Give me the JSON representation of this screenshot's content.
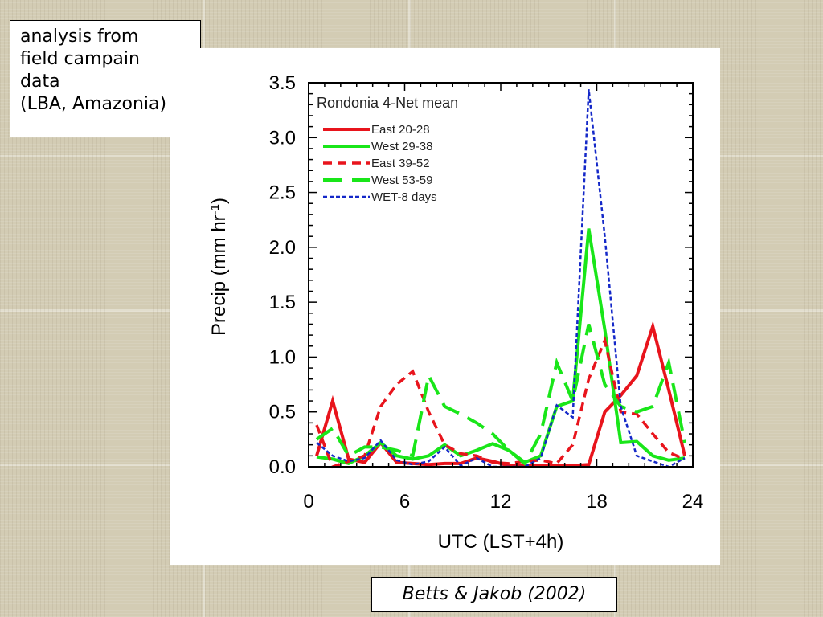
{
  "note": {
    "lines": [
      "analysis from",
      "field campain",
      "data",
      "(LBA, Amazonia)"
    ]
  },
  "citation": "Betts & Jakob (2002)",
  "chart_data": {
    "type": "line",
    "title": "Rondonia 4-Net mean",
    "xlabel": "UTC (LST+4h)",
    "ylabel": "Precip  (mm hr-1)",
    "ylabel_main": "Precip  (mm hr",
    "ylabel_sup": "-1",
    "ylabel_close": ")",
    "xlim": [
      0,
      24
    ],
    "ylim": [
      0,
      3.5
    ],
    "xticks": [
      0,
      6,
      12,
      18,
      24
    ],
    "yticks": [
      "0.0",
      "0.5",
      "1.0",
      "1.5",
      "2.0",
      "2.5",
      "3.0",
      "3.5"
    ],
    "legend_position": "top-left",
    "series": [
      {
        "name": "East 20-28",
        "color": "#e8141c",
        "dash": "solid",
        "x": [
          0.5,
          1.5,
          2.5,
          3.5,
          4.5,
          5.5,
          6.5,
          7.5,
          8.5,
          9.5,
          10.5,
          11.5,
          12.5,
          13.5,
          14.5,
          15.5,
          16.5,
          17.5,
          18.5,
          19.5,
          20.5,
          21.5,
          22.5,
          23.5
        ],
        "y": [
          0.1,
          0.6,
          0.07,
          0.04,
          0.22,
          0.04,
          0.03,
          0.02,
          0.03,
          0.03,
          0.08,
          0.05,
          0.01,
          0.01,
          0.01,
          0.01,
          0.01,
          0.02,
          0.5,
          0.65,
          0.83,
          1.28,
          0.7,
          0.1
        ]
      },
      {
        "name": "West 29-38",
        "color": "#19e619",
        "dash": "solid",
        "x": [
          0.5,
          1.5,
          2.5,
          3.5,
          4.5,
          5.5,
          6.5,
          7.5,
          8.5,
          9.5,
          10.5,
          11.5,
          12.5,
          13.5,
          14.5,
          15.5,
          16.5,
          17.5,
          18.5,
          19.5,
          20.5,
          21.5,
          22.5,
          23.5
        ],
        "y": [
          0.09,
          0.07,
          0.03,
          0.1,
          0.22,
          0.1,
          0.07,
          0.1,
          0.2,
          0.1,
          0.15,
          0.21,
          0.15,
          0.04,
          0.1,
          0.55,
          0.6,
          2.17,
          1.25,
          0.22,
          0.23,
          0.1,
          0.06,
          0.08
        ]
      },
      {
        "name": "East 39-52",
        "color": "#e8141c",
        "dash": "dashed",
        "x": [
          0.5,
          1.5,
          2.5,
          3.5,
          4.5,
          5.5,
          6.5,
          7.5,
          8.5,
          9.5,
          10.5,
          11.5,
          12.5,
          13.5,
          14.5,
          15.5,
          16.5,
          17.5,
          18.5,
          19.5,
          20.5,
          21.5,
          22.5,
          23.5
        ],
        "y": [
          0.38,
          0.0,
          0.05,
          0.1,
          0.55,
          0.75,
          0.87,
          0.5,
          0.2,
          0.12,
          0.1,
          0.04,
          0.03,
          0.05,
          0.06,
          0.03,
          0.2,
          0.8,
          1.15,
          0.5,
          0.48,
          0.3,
          0.13,
          0.07
        ]
      },
      {
        "name": "West 53-59",
        "color": "#19e619",
        "dash": "longdash",
        "x": [
          0.5,
          1.5,
          2.5,
          3.5,
          4.5,
          5.5,
          6.5,
          7.5,
          8.5,
          9.5,
          10.5,
          11.5,
          12.5,
          13.5,
          14.5,
          15.5,
          16.5,
          17.5,
          18.5,
          19.5,
          20.5,
          21.5,
          22.5,
          23.5
        ],
        "y": [
          0.25,
          0.35,
          0.1,
          0.18,
          0.18,
          0.15,
          0.1,
          0.83,
          0.55,
          0.48,
          0.4,
          0.3,
          0.15,
          0.03,
          0.3,
          0.95,
          0.6,
          1.3,
          0.75,
          0.55,
          0.5,
          0.55,
          0.95,
          0.22
        ]
      },
      {
        "name": "WET-8 days",
        "color": "#1428c8",
        "dash": "dotted",
        "x": [
          0.5,
          1.5,
          2.5,
          3.5,
          4.5,
          5.5,
          6.5,
          7.5,
          8.5,
          9.5,
          10.5,
          11.5,
          12.5,
          13.5,
          14.5,
          15.5,
          16.5,
          17.5,
          18.5,
          19.5,
          20.5,
          21.5,
          22.5,
          23.5
        ],
        "y": [
          0.22,
          0.1,
          0.05,
          0.08,
          0.24,
          0.06,
          0.02,
          0.05,
          0.18,
          0.01,
          0.08,
          0.0,
          0.0,
          0.0,
          0.08,
          0.56,
          0.45,
          3.44,
          2.1,
          0.55,
          0.1,
          0.05,
          0.0,
          0.08
        ]
      }
    ]
  }
}
